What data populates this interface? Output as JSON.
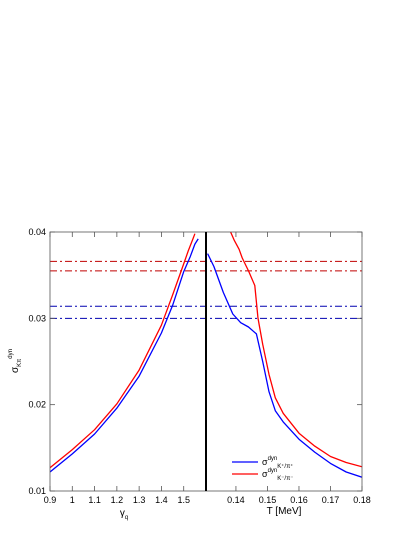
{
  "chart_data": {
    "type": "line",
    "ylabel": {
      "main": "σ",
      "sub": "Kπ",
      "sup": "dyn"
    },
    "ylim": [
      0.01,
      0.04
    ],
    "yticks": [
      {
        "v": 0.01,
        "label": "0.01"
      },
      {
        "v": 0.02,
        "label": "0.02"
      },
      {
        "v": 0.03,
        "label": "0.03"
      },
      {
        "v": 0.04,
        "label": "0.04"
      }
    ],
    "left_panel": {
      "xlabel": {
        "main": "γ",
        "sub": "q"
      },
      "xlim": [
        0.9,
        1.6
      ],
      "xticks": [
        {
          "v": 0.9,
          "label": "0.9"
        },
        {
          "v": 1.0,
          "label": "1"
        },
        {
          "v": 1.1,
          "label": "1.1"
        },
        {
          "v": 1.2,
          "label": "1.2"
        },
        {
          "v": 1.3,
          "label": "1.3"
        },
        {
          "v": 1.4,
          "label": "1.4"
        },
        {
          "v": 1.5,
          "label": "1.5"
        }
      ],
      "series": [
        {
          "color": "#0000ff",
          "x": [
            0.9,
            1.0,
            1.1,
            1.2,
            1.3,
            1.4,
            1.45,
            1.5,
            1.53,
            1.55,
            1.565
          ],
          "y": [
            0.0122,
            0.0143,
            0.0166,
            0.0196,
            0.0233,
            0.0283,
            0.0315,
            0.0354,
            0.0372,
            0.0386,
            0.0392
          ]
        },
        {
          "color": "#ff0000",
          "x": [
            0.9,
            1.0,
            1.1,
            1.2,
            1.3,
            1.4,
            1.45,
            1.5,
            1.52,
            1.54,
            1.55
          ],
          "y": [
            0.0127,
            0.0148,
            0.0171,
            0.0201,
            0.024,
            0.0292,
            0.0327,
            0.0363,
            0.0378,
            0.0391,
            0.0398
          ]
        }
      ]
    },
    "right_panel": {
      "xlabel": "T [MeV]",
      "xlim": [
        0.1305,
        0.18
      ],
      "xticks": [
        {
          "v": 0.14,
          "label": "0.14"
        },
        {
          "v": 0.15,
          "label": "0.15"
        },
        {
          "v": 0.16,
          "label": "0.16"
        },
        {
          "v": 0.17,
          "label": "0.17"
        },
        {
          "v": 0.18,
          "label": "0.18"
        }
      ],
      "series": [
        {
          "name": "K⁺/π⁺",
          "color": "#0000ff",
          "x": [
            0.131,
            0.133,
            0.136,
            0.139,
            0.1415,
            0.144,
            0.1465,
            0.1485,
            0.1505,
            0.1525,
            0.155,
            0.16,
            0.165,
            0.17,
            0.175,
            0.18
          ],
          "y": [
            0.0375,
            0.036,
            0.033,
            0.0305,
            0.0295,
            0.029,
            0.0282,
            0.025,
            0.0215,
            0.0193,
            0.018,
            0.016,
            0.0145,
            0.0132,
            0.0122,
            0.0116
          ]
        },
        {
          "name": "K⁻/π⁻",
          "color": "#ff0000",
          "x": [
            0.1383,
            0.1395,
            0.141,
            0.142,
            0.144,
            0.146,
            0.147,
            0.1485,
            0.1505,
            0.1525,
            0.155,
            0.16,
            0.165,
            0.17,
            0.175,
            0.18
          ],
          "y": [
            0.04,
            0.039,
            0.038,
            0.037,
            0.0355,
            0.0338,
            0.03,
            0.027,
            0.0235,
            0.0208,
            0.019,
            0.0167,
            0.0152,
            0.014,
            0.0133,
            0.0128
          ]
        }
      ]
    },
    "reference_lines": [
      {
        "y": 0.0366,
        "color": "#c00000",
        "style": "dash-dot"
      },
      {
        "y": 0.0355,
        "color": "#c00000",
        "style": "dash-dot"
      },
      {
        "y": 0.0314,
        "color": "#0000b0",
        "style": "dash-dot"
      },
      {
        "y": 0.03,
        "color": "#0000b0",
        "style": "dash-dot"
      }
    ],
    "legend": {
      "placement": "bottom-right",
      "entries": [
        {
          "color": "#0000ff",
          "main": "σ",
          "sup": "dyn",
          "sub": "K⁺/π⁺"
        },
        {
          "color": "#ff0000",
          "main": "σ",
          "sup": "dyn",
          "sub": "K⁻/π⁻"
        }
      ]
    },
    "grid": false
  }
}
